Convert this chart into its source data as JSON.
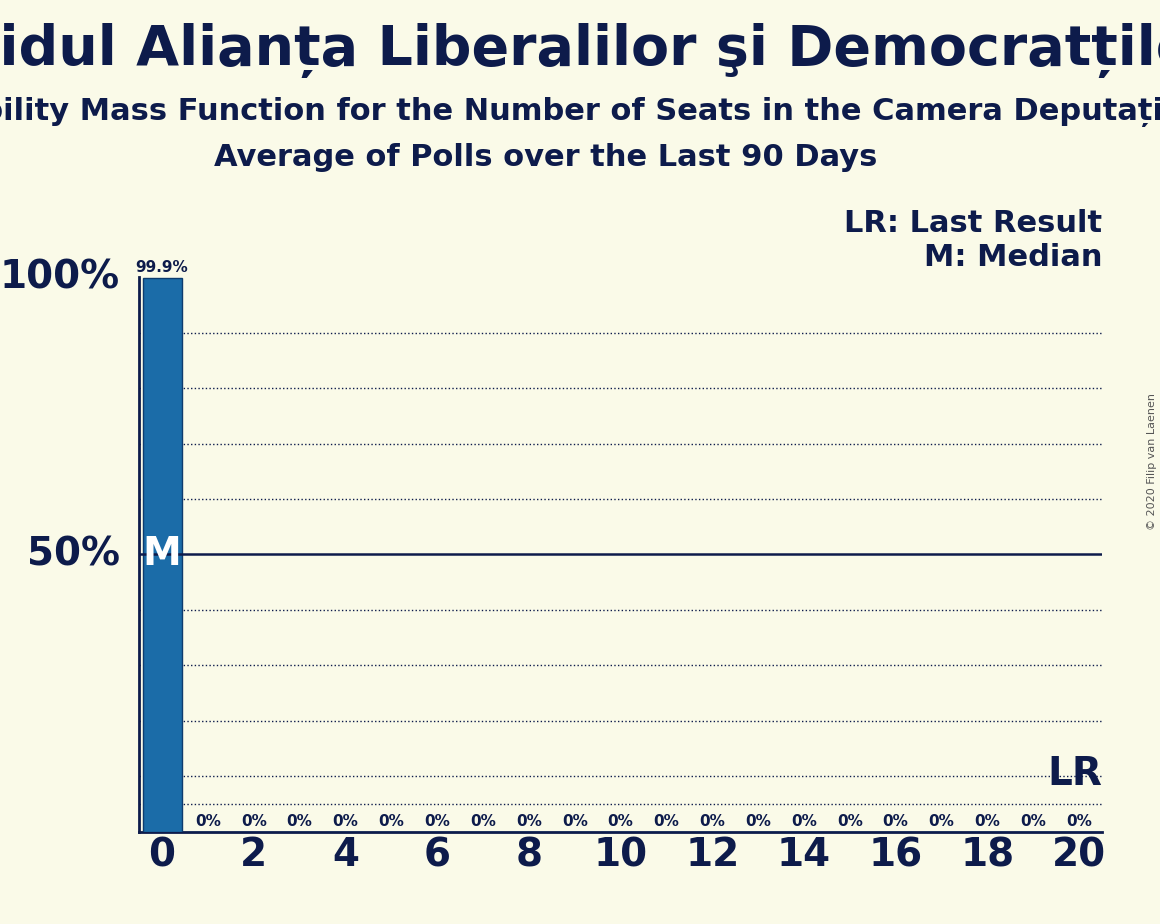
{
  "title": "Partidul Alianța Liberalilor şi Democratților",
  "subtitle1": "Probability Mass Function for the Number of Seats in the Camera Deputaților",
  "subtitle2": "Average of Polls over the Last 90 Days",
  "copyright": "© 2020 Filip van Laenen",
  "background_color": "#FAFAE8",
  "bar_color": "#1B6CA8",
  "bar_edge_color": "#0D3B6E",
  "x_values": [
    0,
    1,
    2,
    3,
    4,
    5,
    6,
    7,
    8,
    9,
    10,
    11,
    12,
    13,
    14,
    15,
    16,
    17,
    18,
    19,
    20
  ],
  "y_values": [
    99.9,
    0,
    0,
    0,
    0,
    0,
    0,
    0,
    0,
    0,
    0,
    0,
    0,
    0,
    0,
    0,
    0,
    0,
    0,
    0,
    0
  ],
  "bar_labels_above": [
    "99.9%"
  ],
  "bar_labels_below": [
    "0%",
    "0%",
    "0%",
    "0%",
    "0%",
    "0%",
    "0%",
    "0%",
    "0%",
    "0%",
    "0%",
    "0%",
    "0%",
    "0%",
    "0%",
    "0%",
    "0%",
    "0%",
    "0%",
    "0%"
  ],
  "ylim": [
    0,
    100
  ],
  "xlim": [
    -0.5,
    20.5
  ],
  "xtick_positions": [
    0,
    2,
    4,
    6,
    8,
    10,
    12,
    14,
    16,
    18,
    20
  ],
  "dotted_line_positions": [
    10,
    20,
    30,
    40,
    60,
    70,
    80,
    90
  ],
  "median_line_y": 50,
  "lr_line_y": 5,
  "legend_lr": "LR: Last Result",
  "legend_m": "M: Median",
  "lr_label": "LR",
  "m_label": "M",
  "dotted_line_color": "#0D1B4B",
  "median_line_color": "#0D1B4B",
  "lr_line_color": "#0D1B4B",
  "text_color": "#0D1B4B",
  "bar_label_99_fontsize": 11,
  "bar_label_0_fontsize": 11,
  "ytick_fontsize": 28,
  "xtick_fontsize": 28,
  "title_fontsize": 40,
  "subtitle1_fontsize": 22,
  "subtitle2_fontsize": 22,
  "legend_fontsize": 22,
  "m_label_fontsize": 28,
  "lr_label_fontsize": 28,
  "copyright_fontsize": 8,
  "copyright_color": "#555555"
}
